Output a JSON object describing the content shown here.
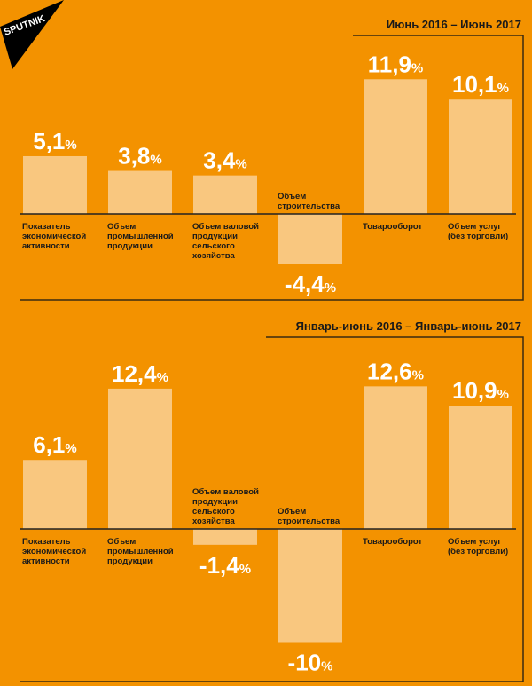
{
  "brand": {
    "logo_text": "SPUTNIK"
  },
  "colors": {
    "background": "#F39200",
    "bar": "#F9C77F",
    "text_dark": "#1a1a1a",
    "value_text": "#ffffff",
    "frame": "#3a2a10"
  },
  "chart_data": [
    {
      "type": "bar",
      "title": "Июнь 2016 – Июнь 2017",
      "categories": [
        "Показатель экономической активности",
        "Объем промышленной продукции",
        "Объем валовой продукции сельского хозяйства",
        "Объем строительства",
        "Товарооборот",
        "Объем услуг (без торговли)"
      ],
      "category_lines": [
        [
          "Показатель",
          "экономической",
          "активности"
        ],
        [
          "Объем",
          "промышленной",
          "продукции"
        ],
        [
          "Объем валовой",
          "продукции",
          "сельского",
          "хозяйства"
        ],
        [
          "Объем",
          "строительства"
        ],
        [
          "Товарооборот"
        ],
        [
          "Объем услуг",
          "(без торговли)"
        ]
      ],
      "values": [
        5.1,
        3.8,
        3.4,
        -4.4,
        11.9,
        10.1
      ],
      "value_labels": [
        "5,1",
        "3,8",
        "3,4",
        "-4,4",
        "11,9",
        "10,1"
      ],
      "unit": "%"
    },
    {
      "type": "bar",
      "title": "Январь-июнь 2016 – Январь-июнь 2017",
      "categories": [
        "Показатель экономической активности",
        "Объем промышленной продукции",
        "Объем валовой продукции сельского хозяйства",
        "Объем строительства",
        "Товарооборот",
        "Объем услуг (без торговли)"
      ],
      "category_lines": [
        [
          "Показатель",
          "экономической",
          "активности"
        ],
        [
          "Объем",
          "промышленной",
          "продукции"
        ],
        [
          "Объем валовой",
          "продукции",
          "сельского",
          "хозяйства"
        ],
        [
          "Объем",
          "строительства"
        ],
        [
          "Товарооборот"
        ],
        [
          "Объем услуг",
          "(без торговли)"
        ]
      ],
      "values": [
        6.1,
        12.4,
        -1.4,
        -10,
        12.6,
        10.9
      ],
      "value_labels": [
        "6,1",
        "12,4",
        "-1,4",
        "-10",
        "12,6",
        "10,9"
      ],
      "unit": "%"
    }
  ]
}
